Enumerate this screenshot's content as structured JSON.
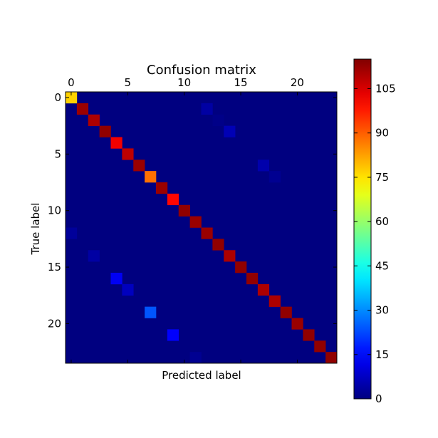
{
  "chart_data": {
    "type": "heatmap",
    "title": "Confusion matrix",
    "xlabel": "Predicted label",
    "ylabel": "True label",
    "n_classes": 24,
    "x_ticks": [
      0,
      5,
      10,
      15,
      20
    ],
    "y_ticks": [
      0,
      5,
      10,
      15,
      20
    ],
    "colormap": "jet",
    "vmin": 0,
    "vmax": 115,
    "colorbar_ticks": [
      0,
      15,
      30,
      45,
      60,
      75,
      90,
      105
    ],
    "cells": [
      [
        0,
        0,
        77
      ],
      [
        1,
        1,
        112
      ],
      [
        2,
        2,
        110
      ],
      [
        3,
        3,
        113
      ],
      [
        4,
        4,
        102
      ],
      [
        5,
        5,
        108
      ],
      [
        6,
        6,
        112
      ],
      [
        7,
        7,
        88
      ],
      [
        8,
        8,
        112
      ],
      [
        9,
        9,
        100
      ],
      [
        10,
        10,
        113
      ],
      [
        11,
        11,
        112
      ],
      [
        12,
        12,
        112
      ],
      [
        13,
        13,
        113
      ],
      [
        14,
        14,
        110
      ],
      [
        15,
        15,
        113
      ],
      [
        16,
        16,
        113
      ],
      [
        17,
        17,
        110
      ],
      [
        18,
        18,
        110
      ],
      [
        19,
        19,
        113
      ],
      [
        20,
        20,
        112
      ],
      [
        21,
        21,
        113
      ],
      [
        22,
        22,
        113
      ],
      [
        23,
        23,
        113
      ],
      [
        1,
        12,
        4
      ],
      [
        2,
        13,
        1
      ],
      [
        3,
        14,
        6
      ],
      [
        6,
        17,
        5
      ],
      [
        7,
        18,
        2
      ],
      [
        12,
        0,
        3
      ],
      [
        14,
        2,
        4
      ],
      [
        16,
        4,
        13
      ],
      [
        17,
        5,
        7
      ],
      [
        19,
        7,
        24
      ],
      [
        21,
        9,
        14
      ],
      [
        23,
        11,
        2
      ]
    ]
  }
}
